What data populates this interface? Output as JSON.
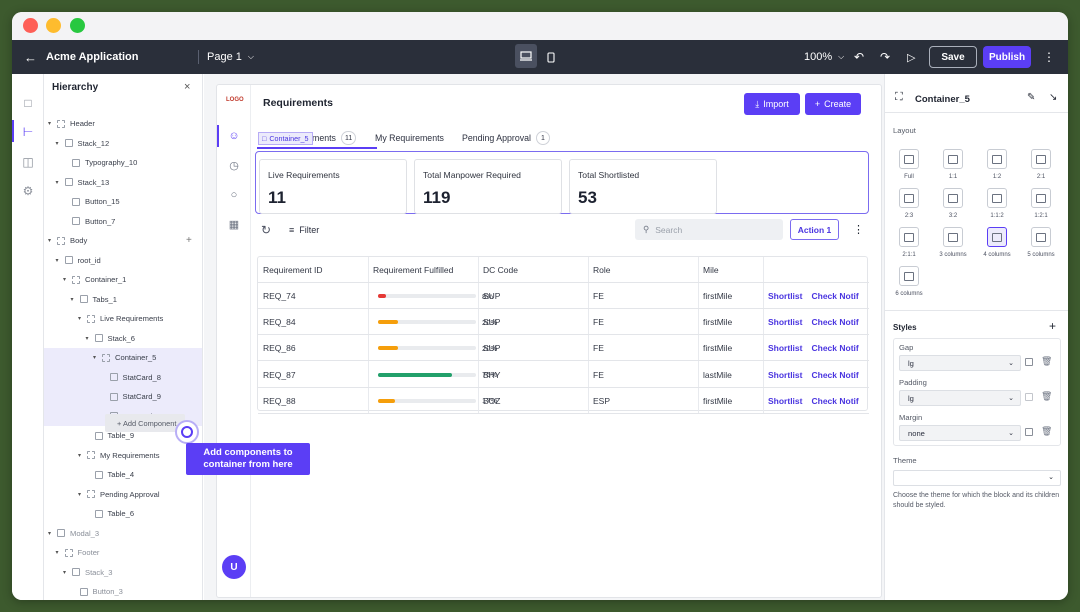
{
  "topbar": {
    "app_name": "Acme Application",
    "page": "Page 1",
    "zoom": "100%",
    "save": "Save",
    "publish": "Publish"
  },
  "hierarchy": {
    "title": "Hierarchy",
    "add_component": "+ Add Component",
    "items": [
      "Header",
      "Stack_12",
      "Typography_10",
      "Stack_13",
      "Button_15",
      "Button_7",
      "Body",
      "root_id",
      "Container_1",
      "Tabs_1",
      "Live Requirements",
      "Stack_6",
      "Container_5",
      "StatCard_8",
      "StatCard_9",
      "StatCard_10",
      "Table_9",
      "My Requirements",
      "Table_4",
      "Pending Approval",
      "Table_6",
      "Modal_3",
      "Footer",
      "Stack_3",
      "Button_3"
    ]
  },
  "tooltip": "Add components to container from here",
  "app": {
    "logo": "LOGO",
    "page_title": "Requirements",
    "import": "Import",
    "create": "Create",
    "selection_tag": "Container_5",
    "tabs": [
      {
        "label": "Live Requirements",
        "count": "11"
      },
      {
        "label": "My Requirements",
        "count": ""
      },
      {
        "label": "Pending Approval",
        "count": "1"
      }
    ],
    "tab0_visible": "ments",
    "stats": [
      {
        "label": "Live Requirements",
        "value": "11"
      },
      {
        "label": "Total Manpower Required",
        "value": "119"
      },
      {
        "label": "Total Shortlisted",
        "value": "53"
      }
    ],
    "filter": "Filter",
    "search_placeholder": "Search",
    "action1": "Action 1",
    "columns": [
      "Requirement ID",
      "Requirement Fulfilled",
      "DC Code",
      "Role",
      "Mile"
    ],
    "row_actions": [
      "Shortlist",
      "Check Notif"
    ],
    "rows": [
      {
        "id": "REQ_74",
        "pct": "8%",
        "fill": 0.08,
        "color": "#e53935",
        "dc": "SUP",
        "role": "FE",
        "mile": "firstMile"
      },
      {
        "id": "REQ_84",
        "pct": "20%",
        "fill": 0.2,
        "color": "#f59e0b",
        "dc": "SUP",
        "role": "FE",
        "mile": "firstMile"
      },
      {
        "id": "REQ_86",
        "pct": "20%",
        "fill": 0.2,
        "color": "#f59e0b",
        "dc": "SUP",
        "role": "FE",
        "mile": "firstMile"
      },
      {
        "id": "REQ_87",
        "pct": "75%",
        "fill": 0.75,
        "color": "#22a06b",
        "dc": "BHY",
        "role": "FE",
        "mile": "lastMile"
      },
      {
        "id": "REQ_88",
        "pct": "17%",
        "fill": 0.17,
        "color": "#f59e0b",
        "dc": "BOZ",
        "role": "ESP",
        "mile": "firstMile"
      }
    ],
    "avatar": "U"
  },
  "props": {
    "title": "Container_5",
    "layout_label": "Layout",
    "layouts": [
      "Full",
      "1:1",
      "1:2",
      "2:1",
      "2:3",
      "3:2",
      "1:1:2",
      "1:2:1",
      "2:1:1",
      "3 columns",
      "4 columns",
      "5 columns",
      "6 columns"
    ],
    "styles_label": "Styles",
    "gap_label": "Gap",
    "gap": "lg",
    "padding_label": "Padding",
    "padding": "lg",
    "margin_label": "Margin",
    "margin": "none",
    "theme_label": "Theme",
    "theme_help": "Choose the theme for which the block and its children should be styled."
  }
}
